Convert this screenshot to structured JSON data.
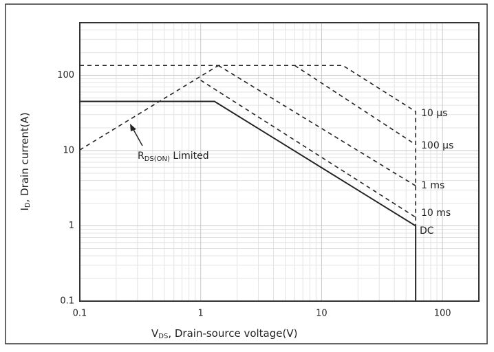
{
  "chart_data": {
    "type": "line",
    "xlabel": {
      "main": "V",
      "sub": "DS",
      "rest": ", Drain-source voltage(V)"
    },
    "ylabel": {
      "main": "I",
      "sub": "D",
      "rest": ", Drain current(A)"
    },
    "annotation": {
      "main": "R",
      "sub": "DS(ON)",
      "rest": " Limited"
    },
    "log_x": true,
    "log_y": true,
    "grid": true,
    "xlim": [
      0.1,
      200
    ],
    "ylim": [
      0.1,
      500
    ],
    "xticks": [
      0.1,
      1,
      10,
      100
    ],
    "yticks": [
      0.1,
      1,
      10,
      100
    ],
    "xminor": [
      0.2,
      0.3,
      0.4,
      0.5,
      0.6,
      0.7,
      0.8,
      0.9,
      2,
      3,
      4,
      5,
      6,
      7,
      8,
      9,
      20,
      30,
      40,
      50,
      60,
      70,
      80,
      90
    ],
    "yminor": [
      0.2,
      0.3,
      0.4,
      0.5,
      0.6,
      0.7,
      0.8,
      0.9,
      2,
      3,
      4,
      5,
      6,
      7,
      8,
      9,
      20,
      30,
      40,
      50,
      60,
      70,
      80,
      90,
      200,
      300,
      400
    ],
    "series": [
      {
        "name": "10 µs",
        "color": "#222",
        "dashed": true,
        "x": [
          0.1,
          15,
          60,
          60
        ],
        "values": [
          135,
          135,
          33,
          1
        ]
      },
      {
        "name": "100 µs",
        "color": "#222",
        "dashed": true,
        "x": [
          6,
          60
        ],
        "values": [
          135,
          12
        ]
      },
      {
        "name": "1 ms",
        "color": "#222",
        "dashed": true,
        "x": [
          1.4,
          60
        ],
        "values": [
          135,
          3.4
        ]
      },
      {
        "name": "10 ms",
        "color": "#222",
        "dashed": true,
        "x": [
          1,
          60
        ],
        "values": [
          86,
          1.3
        ]
      },
      {
        "name": "DC",
        "color": "#222",
        "dashed": false,
        "x": [
          0.1,
          1.3,
          60,
          60
        ],
        "values": [
          45,
          45,
          1,
          0.1
        ]
      },
      {
        "name": "RDS(ON)",
        "color": "#222",
        "dashed": true,
        "x": [
          0.1,
          1.4
        ],
        "values": [
          10.2,
          135
        ]
      }
    ]
  }
}
